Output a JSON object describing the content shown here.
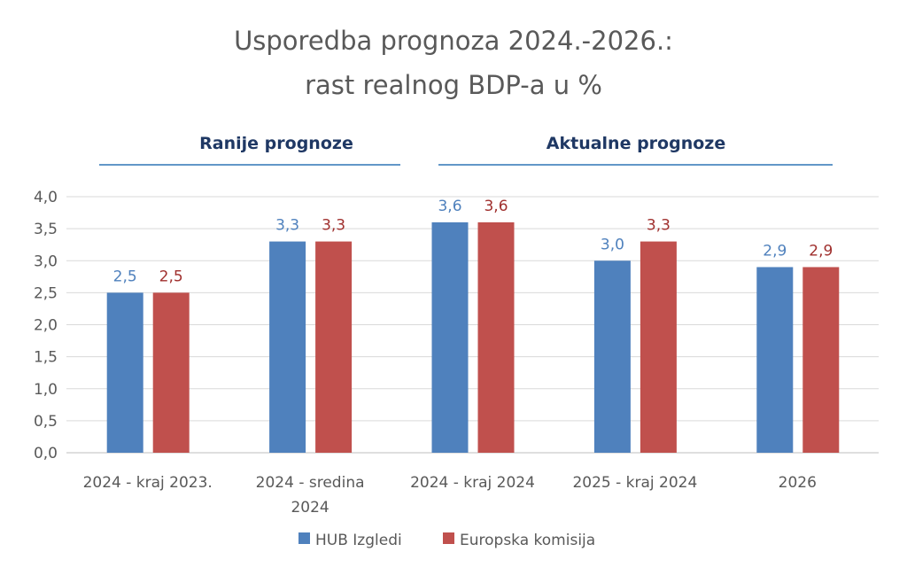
{
  "chart_data": {
    "type": "bar",
    "title_lines": [
      "Usporedba prognoza 2024.-2026.:",
      "rast realnog BDP-a u %"
    ],
    "group_headers": [
      {
        "label": "Ranije prognoze",
        "spans": [
          "2024 - kraj 2023.",
          "2024 - sredina 2024"
        ]
      },
      {
        "label": "Aktualne prognoze",
        "spans": [
          "2024 - kraj 2024",
          "2025 - kraj 2024",
          "2026"
        ]
      }
    ],
    "categories": [
      [
        "2024 - kraj 2023."
      ],
      [
        "2024 - sredina",
        "2024"
      ],
      [
        "2024 - kraj 2024"
      ],
      [
        "2025 - kraj 2024"
      ],
      [
        "2026"
      ]
    ],
    "series": [
      {
        "name": "HUB Izgledi",
        "color": "#4f81bd",
        "label_color": "#4f81bd",
        "values": [
          2.5,
          3.3,
          3.6,
          3.0,
          2.9
        ],
        "labels": [
          "2,5",
          "3,3",
          "3,6",
          "3,0",
          "2,9"
        ]
      },
      {
        "name": "Europska komisija",
        "color": "#c0504d",
        "label_color": "#a0302e",
        "values": [
          2.5,
          3.3,
          3.6,
          3.3,
          2.9
        ],
        "labels": [
          "2,5",
          "3,3",
          "3,6",
          "3,3",
          "2,9"
        ]
      }
    ],
    "ylim": [
      0,
      4.0
    ],
    "yticks": [
      0,
      0.5,
      1.0,
      1.5,
      2.0,
      2.5,
      3.0,
      3.5,
      4.0
    ],
    "ytick_labels": [
      "0,0",
      "0,5",
      "1,0",
      "1,5",
      "2,0",
      "2,5",
      "3,0",
      "3,5",
      "4,0"
    ],
    "grid": true,
    "legend": "bottom",
    "header_color": "#1f3864",
    "header_line_color": "#2e75b6"
  }
}
